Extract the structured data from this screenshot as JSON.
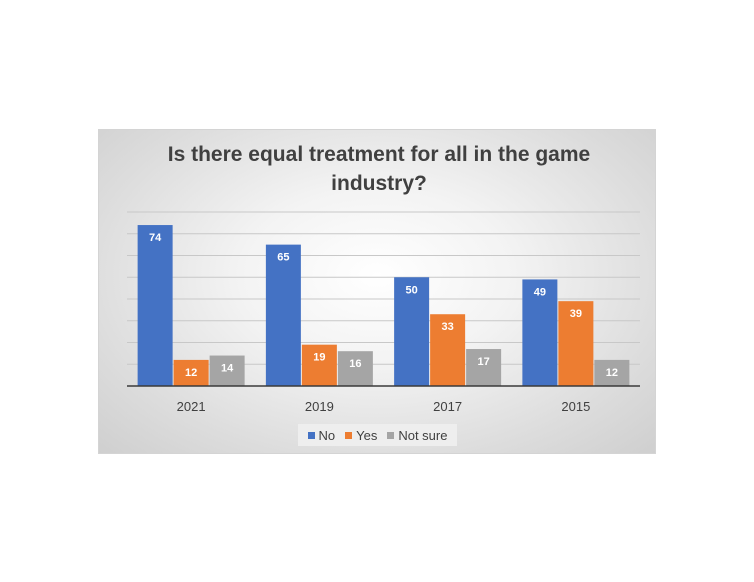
{
  "chart_data": {
    "type": "bar",
    "title": "Is there equal treatment for all in the game industry?",
    "categories": [
      "2021",
      "2019",
      "2017",
      "2015"
    ],
    "series": [
      {
        "name": "No",
        "color": "#4472C4",
        "values": [
          74,
          65,
          50,
          49
        ]
      },
      {
        "name": "Yes",
        "color": "#ED7D31",
        "values": [
          12,
          19,
          33,
          39
        ]
      },
      {
        "name": "Not sure",
        "color": "#A5A5A5",
        "values": [
          14,
          16,
          17,
          12
        ]
      }
    ],
    "ylim": [
      0,
      80
    ],
    "grid": true,
    "legend_position": "bottom"
  }
}
